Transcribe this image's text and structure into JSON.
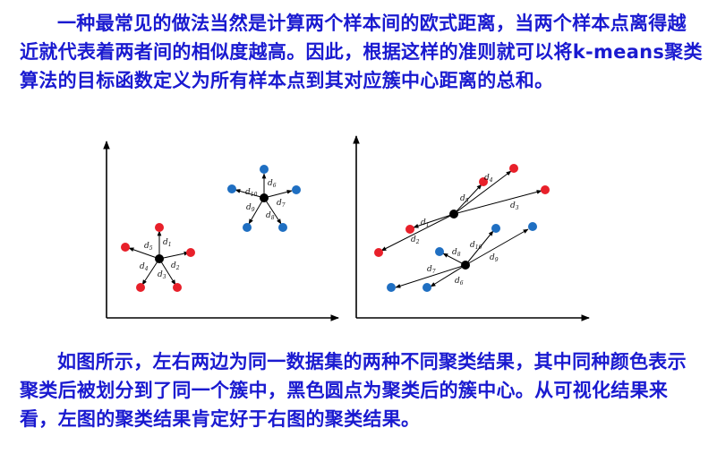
{
  "text": {
    "paragraph1": "一种最常见的做法当然是计算两个样本间的欧式距离，当两个样本点离得越近就代表着两者间的相似度越高。因此，根据这样的准则就可以将k-means聚类算法的目标函数定义为所有样本点到其对应簇中心距离的总和。",
    "paragraph2": "如图所示，左右两边为同一数据集的两种不同聚类结果，其中同种颜色表示聚类后被划分到了同一个簇中，黑色圆点为聚类后的簇中心。从可视化结果来看，左图的聚类结果肯定好于右图的聚类结果。"
  },
  "colors": {
    "text": "#1a1ad0",
    "red_point": "#e8202a",
    "blue_point": "#1f6fc2",
    "center": "#000000",
    "axis": "#000000"
  },
  "figure": {
    "left_panel": {
      "red_labels": [
        "d1",
        "d2",
        "d3",
        "d4",
        "d5"
      ],
      "blue_labels": [
        "d6",
        "d7",
        "d8",
        "d9",
        "d10"
      ]
    },
    "right_panel": {
      "red_labels": [
        "d1",
        "d2",
        "d3",
        "d4",
        "d5"
      ],
      "blue_labels": [
        "d6",
        "d7",
        "d8",
        "d9",
        "d10"
      ]
    }
  }
}
